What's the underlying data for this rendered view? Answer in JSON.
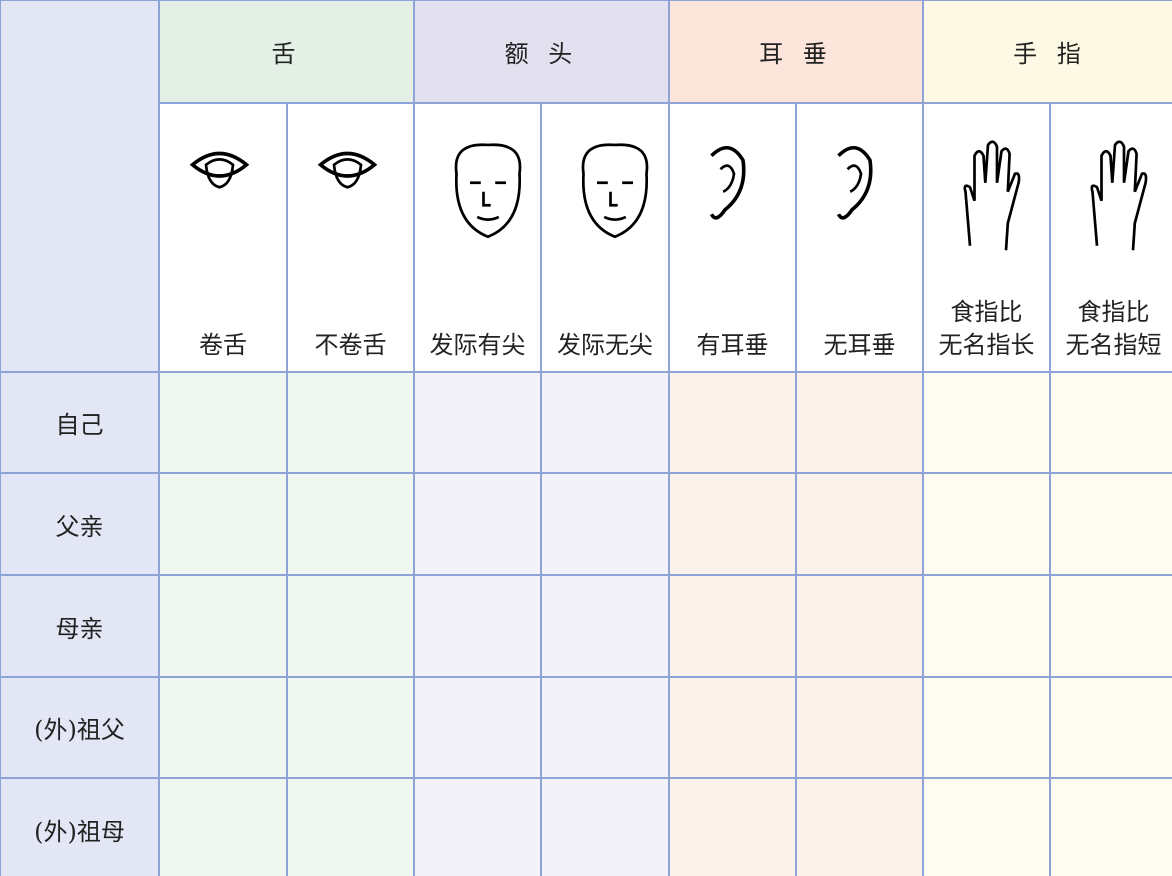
{
  "table": {
    "groups": [
      "舌",
      "额 头",
      "耳 垂",
      "手 指"
    ],
    "traits": [
      "卷舌",
      "不卷舌",
      "发际有尖",
      "发际无尖",
      "有耳垂",
      "无耳垂",
      "食指比\n无名指长",
      "食指比\n无名指短"
    ],
    "rows": [
      "自己",
      "父亲",
      "母亲",
      "(外)祖父",
      "(外)祖母"
    ]
  }
}
